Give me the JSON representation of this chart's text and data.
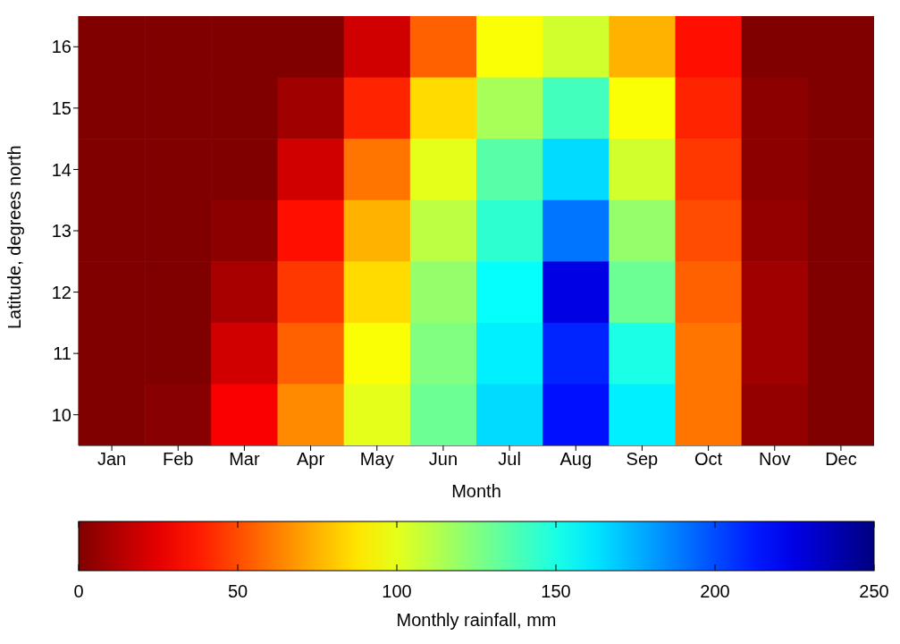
{
  "chart_data": {
    "type": "heatmap",
    "xlabel": "Month",
    "ylabel": "Latitude, degrees north",
    "clabel": "Monthly rainfall, mm",
    "categories": [
      "Jan",
      "Feb",
      "Mar",
      "Apr",
      "May",
      "Jun",
      "Jul",
      "Aug",
      "Sep",
      "Oct",
      "Nov",
      "Dec"
    ],
    "y_categories": [
      "16",
      "15",
      "14",
      "13",
      "12",
      "11",
      "10"
    ],
    "cells": [
      [
        0,
        0,
        0,
        0,
        20,
        55,
        95,
        105,
        75,
        35,
        0,
        0
      ],
      [
        0,
        0,
        0,
        8,
        40,
        85,
        115,
        140,
        95,
        40,
        3,
        0
      ],
      [
        0,
        0,
        0,
        20,
        60,
        100,
        135,
        165,
        105,
        45,
        3,
        0
      ],
      [
        0,
        0,
        3,
        35,
        75,
        110,
        145,
        190,
        120,
        50,
        5,
        0
      ],
      [
        0,
        0,
        10,
        45,
        85,
        120,
        155,
        225,
        130,
        55,
        8,
        0
      ],
      [
        0,
        0,
        20,
        55,
        95,
        125,
        160,
        210,
        150,
        60,
        8,
        0
      ],
      [
        0,
        2,
        30,
        65,
        100,
        130,
        165,
        215,
        160,
        60,
        5,
        0
      ]
    ],
    "clim": [
      0,
      250
    ],
    "cticks": [
      0,
      50,
      100,
      150,
      200,
      250
    ]
  }
}
